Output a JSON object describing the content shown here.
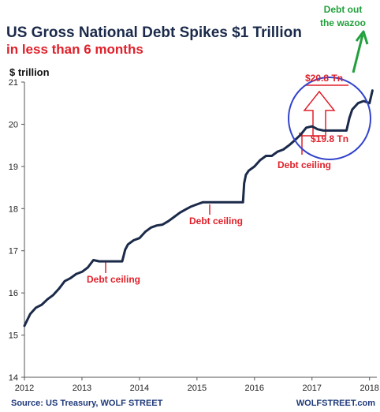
{
  "chart_data": {
    "type": "line",
    "title": "US Gross National Debt Spikes $1 Trillion",
    "subtitle": "in less than 6 months",
    "ylabel": "$ trillion",
    "xlim": [
      2012,
      2018.1
    ],
    "ylim": [
      14,
      21
    ],
    "x_ticks": [
      "2012",
      "2013",
      "2014",
      "2015",
      "2016",
      "2017",
      "2018"
    ],
    "y_ticks": [
      "14",
      "15",
      "16",
      "17",
      "18",
      "19",
      "20",
      "21"
    ],
    "grid": false,
    "colors": {
      "line": "#1b2a4a",
      "annotation": "#e0202a",
      "circle": "#3344cc",
      "callout": "#22a03c",
      "axis": "#555555"
    },
    "series": [
      {
        "x": [
          2012.0,
          2012.1,
          2012.2,
          2012.3,
          2012.4,
          2012.5,
          2012.6,
          2012.7,
          2012.8,
          2012.9,
          2013.0,
          2013.1,
          2013.2,
          2013.3,
          2013.7,
          2013.75,
          2013.8,
          2013.9,
          2014.0,
          2014.1,
          2014.2,
          2014.3,
          2014.4,
          2014.5,
          2014.6,
          2014.7,
          2014.8,
          2014.9,
          2015.0,
          2015.1,
          2015.2,
          2015.3,
          2015.8,
          2015.82,
          2015.85,
          2015.9,
          2016.0,
          2016.1,
          2016.2,
          2016.3,
          2016.4,
          2016.5,
          2016.6,
          2016.7,
          2016.8,
          2016.9,
          2017.0,
          2017.1,
          2017.2,
          2017.6,
          2017.65,
          2017.7,
          2017.8,
          2017.9,
          2018.0,
          2018.05
        ],
        "y": [
          15.22,
          15.5,
          15.65,
          15.72,
          15.85,
          15.95,
          16.1,
          16.28,
          16.35,
          16.45,
          16.5,
          16.6,
          16.78,
          16.75,
          16.75,
          17.02,
          17.15,
          17.25,
          17.3,
          17.45,
          17.55,
          17.6,
          17.62,
          17.7,
          17.8,
          17.9,
          17.98,
          18.05,
          18.1,
          18.15,
          18.15,
          18.15,
          18.15,
          18.6,
          18.8,
          18.9,
          19.0,
          19.15,
          19.25,
          19.25,
          19.35,
          19.4,
          19.5,
          19.62,
          19.75,
          19.92,
          19.95,
          19.88,
          19.85,
          19.85,
          20.15,
          20.35,
          20.5,
          20.55,
          20.5,
          20.8
        ]
      }
    ],
    "annotations": {
      "debt_ceiling_2013": "Debt ceiling",
      "debt_ceiling_2015": "Debt ceiling",
      "debt_ceiling_2017": "Debt ceiling",
      "top_value": "$20.8 Tn",
      "bottom_value": "$19.8 Tn",
      "callout": [
        "Debt out",
        "the wazoo"
      ]
    }
  },
  "footer": {
    "source": "Source: US Treasury, WOLF STREET",
    "brand": "WOLFSTREET.com"
  }
}
